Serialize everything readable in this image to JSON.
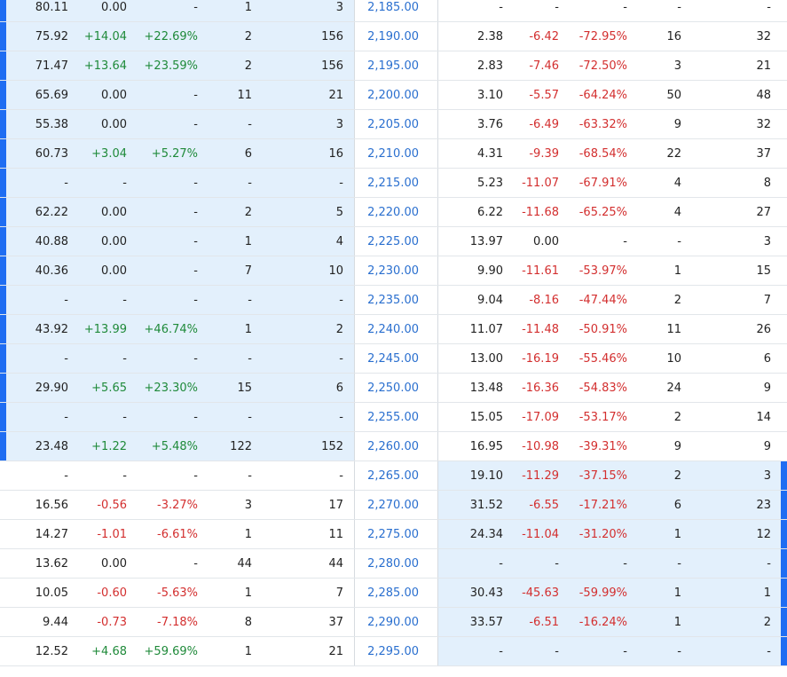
{
  "colors": {
    "accent_bar": "#1f6df2",
    "in_the_money_bg": "#e3f0fc",
    "positive": "#1f8a3a",
    "negative": "#d32f2f",
    "strike_text": "#2a6fcf"
  },
  "rows": [
    {
      "strike": "2,185.00",
      "call": {
        "last": "80.11",
        "change": "0.00",
        "pct": "-",
        "vol": "1",
        "oi": "3",
        "itm": true
      },
      "put": {
        "last": "-",
        "change": "-",
        "pct": "-",
        "vol": "-",
        "oi": "-",
        "itm": false
      }
    },
    {
      "strike": "2,190.00",
      "call": {
        "last": "75.92",
        "change": "+14.04",
        "pct": "+22.69%",
        "vol": "2",
        "oi": "156",
        "itm": true
      },
      "put": {
        "last": "2.38",
        "change": "-6.42",
        "pct": "-72.95%",
        "vol": "16",
        "oi": "32",
        "itm": false
      }
    },
    {
      "strike": "2,195.00",
      "call": {
        "last": "71.47",
        "change": "+13.64",
        "pct": "+23.59%",
        "vol": "2",
        "oi": "156",
        "itm": true
      },
      "put": {
        "last": "2.83",
        "change": "-7.46",
        "pct": "-72.50%",
        "vol": "3",
        "oi": "21",
        "itm": false
      }
    },
    {
      "strike": "2,200.00",
      "call": {
        "last": "65.69",
        "change": "0.00",
        "pct": "-",
        "vol": "11",
        "oi": "21",
        "itm": true
      },
      "put": {
        "last": "3.10",
        "change": "-5.57",
        "pct": "-64.24%",
        "vol": "50",
        "oi": "48",
        "itm": false
      }
    },
    {
      "strike": "2,205.00",
      "call": {
        "last": "55.38",
        "change": "0.00",
        "pct": "-",
        "vol": "-",
        "oi": "3",
        "itm": true
      },
      "put": {
        "last": "3.76",
        "change": "-6.49",
        "pct": "-63.32%",
        "vol": "9",
        "oi": "32",
        "itm": false
      }
    },
    {
      "strike": "2,210.00",
      "call": {
        "last": "60.73",
        "change": "+3.04",
        "pct": "+5.27%",
        "vol": "6",
        "oi": "16",
        "itm": true
      },
      "put": {
        "last": "4.31",
        "change": "-9.39",
        "pct": "-68.54%",
        "vol": "22",
        "oi": "37",
        "itm": false
      }
    },
    {
      "strike": "2,215.00",
      "call": {
        "last": "-",
        "change": "-",
        "pct": "-",
        "vol": "-",
        "oi": "-",
        "itm": true
      },
      "put": {
        "last": "5.23",
        "change": "-11.07",
        "pct": "-67.91%",
        "vol": "4",
        "oi": "8",
        "itm": false
      }
    },
    {
      "strike": "2,220.00",
      "call": {
        "last": "62.22",
        "change": "0.00",
        "pct": "-",
        "vol": "2",
        "oi": "5",
        "itm": true
      },
      "put": {
        "last": "6.22",
        "change": "-11.68",
        "pct": "-65.25%",
        "vol": "4",
        "oi": "27",
        "itm": false
      }
    },
    {
      "strike": "2,225.00",
      "call": {
        "last": "40.88",
        "change": "0.00",
        "pct": "-",
        "vol": "1",
        "oi": "4",
        "itm": true
      },
      "put": {
        "last": "13.97",
        "change": "0.00",
        "pct": "-",
        "vol": "-",
        "oi": "3",
        "itm": false
      }
    },
    {
      "strike": "2,230.00",
      "call": {
        "last": "40.36",
        "change": "0.00",
        "pct": "-",
        "vol": "7",
        "oi": "10",
        "itm": true
      },
      "put": {
        "last": "9.90",
        "change": "-11.61",
        "pct": "-53.97%",
        "vol": "1",
        "oi": "15",
        "itm": false
      }
    },
    {
      "strike": "2,235.00",
      "call": {
        "last": "-",
        "change": "-",
        "pct": "-",
        "vol": "-",
        "oi": "-",
        "itm": true
      },
      "put": {
        "last": "9.04",
        "change": "-8.16",
        "pct": "-47.44%",
        "vol": "2",
        "oi": "7",
        "itm": false
      }
    },
    {
      "strike": "2,240.00",
      "call": {
        "last": "43.92",
        "change": "+13.99",
        "pct": "+46.74%",
        "vol": "1",
        "oi": "2",
        "itm": true
      },
      "put": {
        "last": "11.07",
        "change": "-11.48",
        "pct": "-50.91%",
        "vol": "11",
        "oi": "26",
        "itm": false
      }
    },
    {
      "strike": "2,245.00",
      "call": {
        "last": "-",
        "change": "-",
        "pct": "-",
        "vol": "-",
        "oi": "-",
        "itm": true
      },
      "put": {
        "last": "13.00",
        "change": "-16.19",
        "pct": "-55.46%",
        "vol": "10",
        "oi": "6",
        "itm": false
      }
    },
    {
      "strike": "2,250.00",
      "call": {
        "last": "29.90",
        "change": "+5.65",
        "pct": "+23.30%",
        "vol": "15",
        "oi": "6",
        "itm": true
      },
      "put": {
        "last": "13.48",
        "change": "-16.36",
        "pct": "-54.83%",
        "vol": "24",
        "oi": "9",
        "itm": false
      }
    },
    {
      "strike": "2,255.00",
      "call": {
        "last": "-",
        "change": "-",
        "pct": "-",
        "vol": "-",
        "oi": "-",
        "itm": true
      },
      "put": {
        "last": "15.05",
        "change": "-17.09",
        "pct": "-53.17%",
        "vol": "2",
        "oi": "14",
        "itm": false
      }
    },
    {
      "strike": "2,260.00",
      "call": {
        "last": "23.48",
        "change": "+1.22",
        "pct": "+5.48%",
        "vol": "122",
        "oi": "152",
        "itm": true
      },
      "put": {
        "last": "16.95",
        "change": "-10.98",
        "pct": "-39.31%",
        "vol": "9",
        "oi": "9",
        "itm": false
      }
    },
    {
      "strike": "2,265.00",
      "call": {
        "last": "-",
        "change": "-",
        "pct": "-",
        "vol": "-",
        "oi": "-",
        "itm": false
      },
      "put": {
        "last": "19.10",
        "change": "-11.29",
        "pct": "-37.15%",
        "vol": "2",
        "oi": "3",
        "itm": true
      }
    },
    {
      "strike": "2,270.00",
      "call": {
        "last": "16.56",
        "change": "-0.56",
        "pct": "-3.27%",
        "vol": "3",
        "oi": "17",
        "itm": false
      },
      "put": {
        "last": "31.52",
        "change": "-6.55",
        "pct": "-17.21%",
        "vol": "6",
        "oi": "23",
        "itm": true
      }
    },
    {
      "strike": "2,275.00",
      "call": {
        "last": "14.27",
        "change": "-1.01",
        "pct": "-6.61%",
        "vol": "1",
        "oi": "11",
        "itm": false
      },
      "put": {
        "last": "24.34",
        "change": "-11.04",
        "pct": "-31.20%",
        "vol": "1",
        "oi": "12",
        "itm": true
      }
    },
    {
      "strike": "2,280.00",
      "call": {
        "last": "13.62",
        "change": "0.00",
        "pct": "-",
        "vol": "44",
        "oi": "44",
        "itm": false
      },
      "put": {
        "last": "-",
        "change": "-",
        "pct": "-",
        "vol": "-",
        "oi": "-",
        "itm": true
      }
    },
    {
      "strike": "2,285.00",
      "call": {
        "last": "10.05",
        "change": "-0.60",
        "pct": "-5.63%",
        "vol": "1",
        "oi": "7",
        "itm": false
      },
      "put": {
        "last": "30.43",
        "change": "-45.63",
        "pct": "-59.99%",
        "vol": "1",
        "oi": "1",
        "itm": true
      }
    },
    {
      "strike": "2,290.00",
      "call": {
        "last": "9.44",
        "change": "-0.73",
        "pct": "-7.18%",
        "vol": "8",
        "oi": "37",
        "itm": false
      },
      "put": {
        "last": "33.57",
        "change": "-6.51",
        "pct": "-16.24%",
        "vol": "1",
        "oi": "2",
        "itm": true
      }
    },
    {
      "strike": "2,295.00",
      "call": {
        "last": "12.52",
        "change": "+4.68",
        "pct": "+59.69%",
        "vol": "1",
        "oi": "21",
        "itm": false
      },
      "put": {
        "last": "-",
        "change": "-",
        "pct": "-",
        "vol": "-",
        "oi": "-",
        "itm": true
      }
    }
  ]
}
